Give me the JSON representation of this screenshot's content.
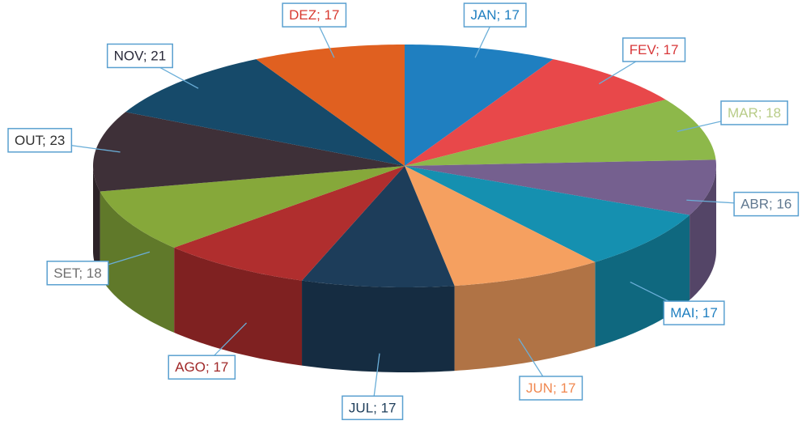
{
  "chart_data": {
    "type": "pie3d",
    "values": [
      17,
      17,
      18,
      16,
      17,
      17,
      17,
      17,
      18,
      23,
      21,
      17
    ],
    "value_labels": [
      "JAN; 17",
      "FEV; 17",
      "MAR; 18",
      "ABR; 16",
      "MAI; 17",
      "JUN; 17",
      "JUL; 17",
      "AGO; 17",
      "SET; 18",
      "OUT; 23",
      "NOV; 21",
      "DEZ; 17"
    ],
    "colors": [
      "#1f7fc0",
      "#e8484a",
      "#8db84a",
      "#75608f",
      "#1590b0",
      "#f5a060",
      "#1d3d5a",
      "#b02e2e",
      "#86a83a",
      "#3e3038",
      "#164a6a",
      "#e06020"
    ],
    "label_colors": [
      "#1f7fc0",
      "#d8383a",
      "#b8cc88",
      "#607890",
      "#1f7fc0",
      "#f08850",
      "#1d3d5a",
      "#a02828",
      "#707070",
      "#303030",
      "#2a2a3a",
      "#d83a30"
    ]
  }
}
